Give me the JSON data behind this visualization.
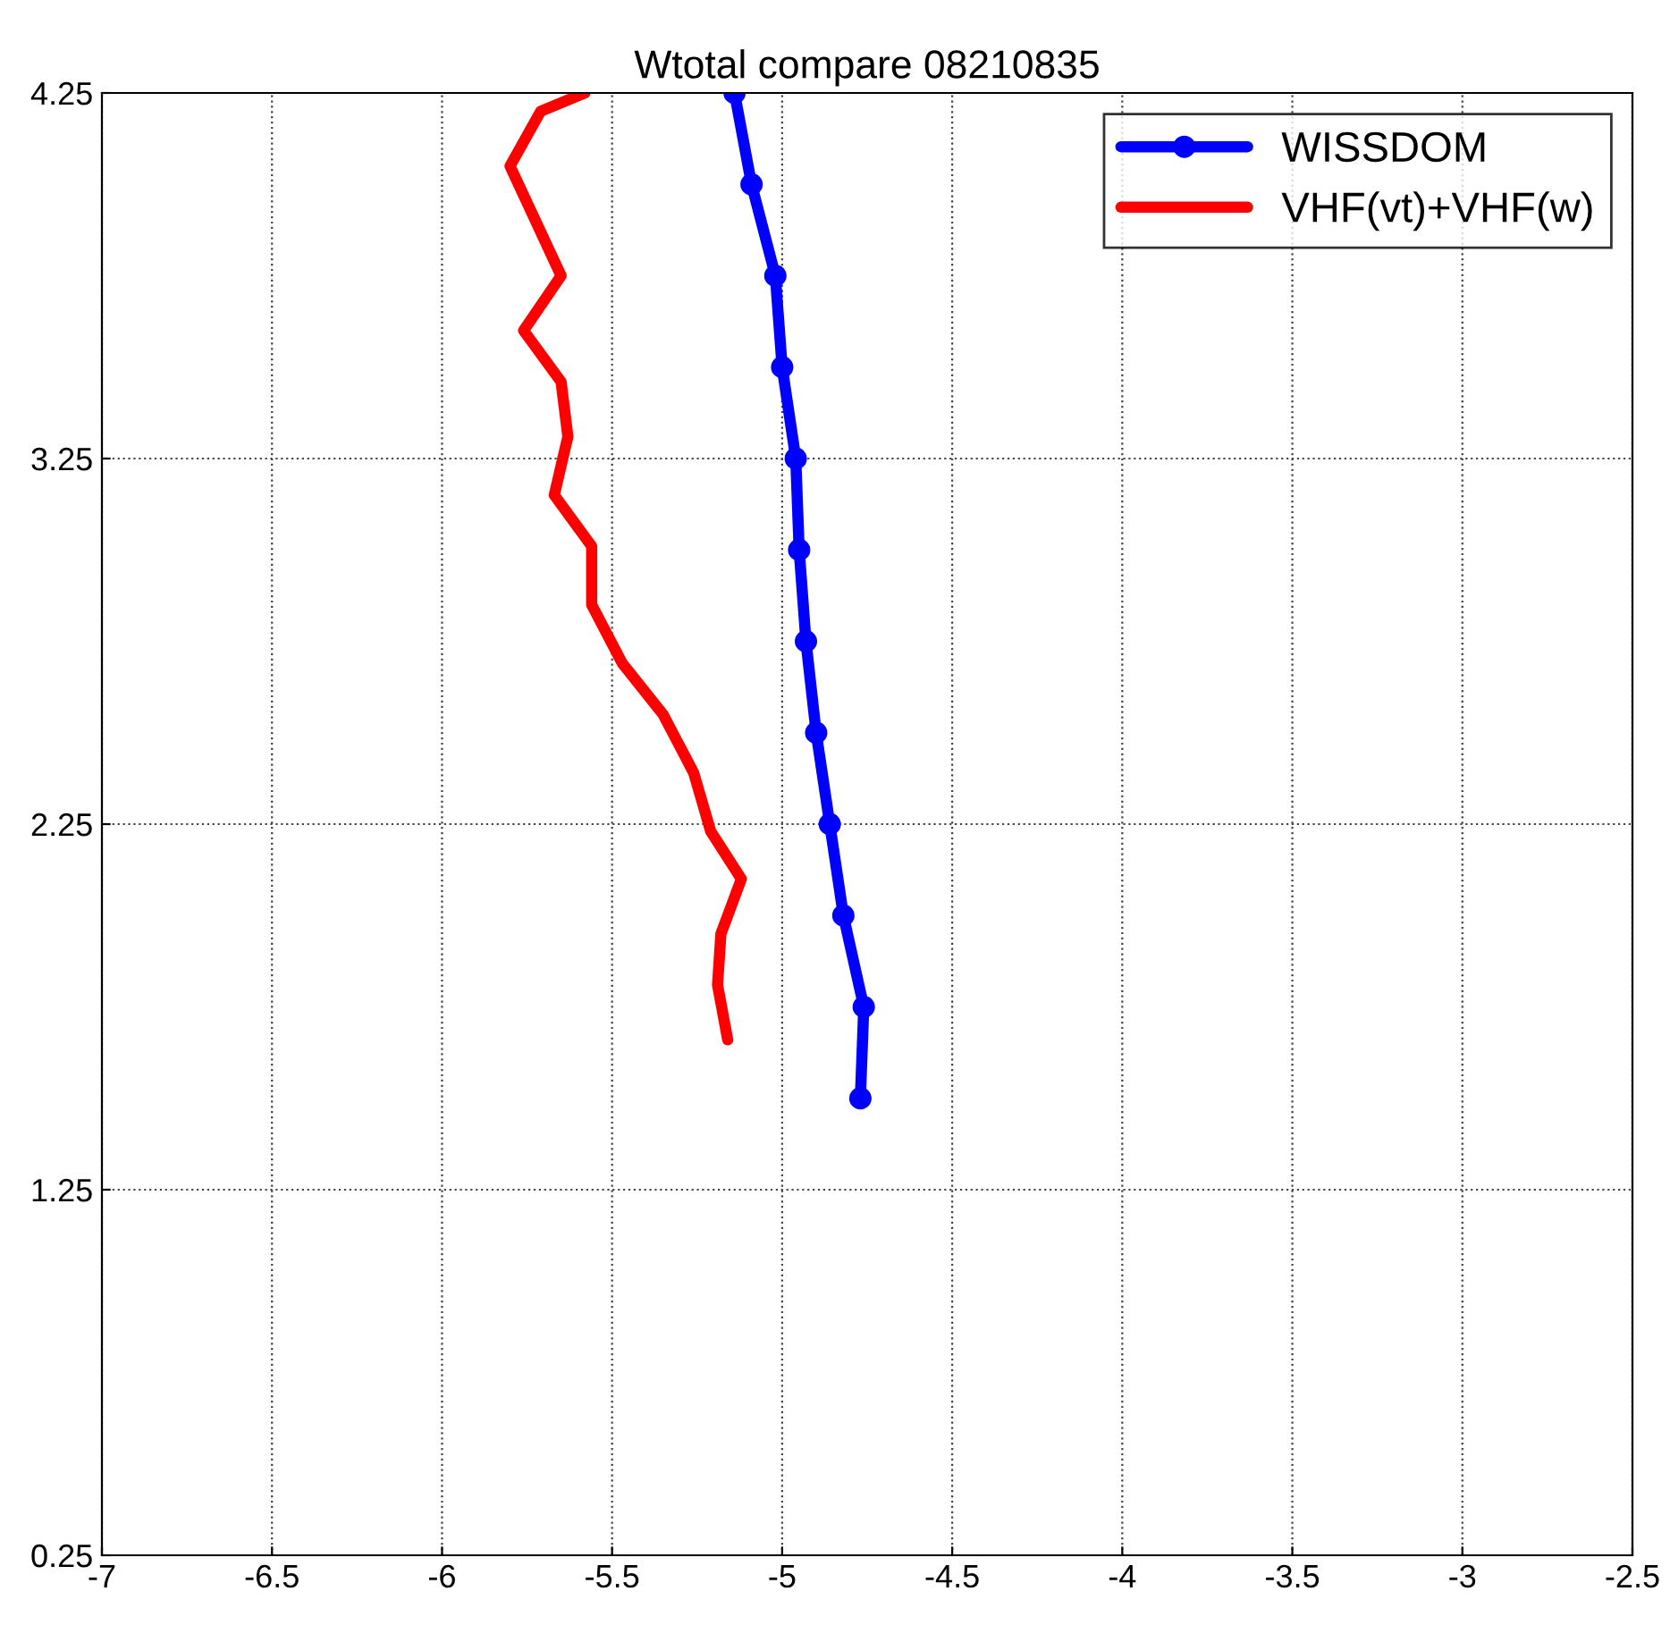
{
  "chart_data": {
    "type": "line",
    "title": "Wtotal compare 08210835",
    "series": [
      {
        "name": "WISSDOM",
        "color": "#0000ff",
        "marker": "circle",
        "x": [
          -5.14,
          -5.09,
          -5.02,
          -5.0,
          -4.96,
          -4.95,
          -4.93,
          -4.9,
          -4.86,
          -4.82,
          -4.76,
          -4.77
        ],
        "values": [
          4.25,
          4.0,
          3.75,
          3.5,
          3.25,
          3.0,
          2.75,
          2.5,
          2.25,
          2.0,
          1.75,
          1.5
        ]
      },
      {
        "name": "VHF(vt)+VHF(w)",
        "color": "#ff0000",
        "marker": "none",
        "x": [
          -5.58,
          -5.71,
          -5.8,
          -5.65,
          -5.76,
          -5.65,
          -5.63,
          -5.67,
          -5.56,
          -5.56,
          -5.47,
          -5.35,
          -5.26,
          -5.21,
          -5.12,
          -5.18,
          -5.19,
          -5.16
        ],
        "values": [
          4.25,
          4.2,
          4.05,
          3.75,
          3.6,
          3.46,
          3.31,
          3.15,
          3.01,
          2.85,
          2.69,
          2.55,
          2.39,
          2.23,
          2.1,
          1.95,
          1.81,
          1.66
        ]
      }
    ],
    "xlim": [
      -7,
      -2.5
    ],
    "xticks": [
      -7,
      -6.5,
      -6,
      -5.5,
      -5,
      -4.5,
      -4,
      -3.5,
      -3,
      -2.5
    ],
    "ylim": [
      0.25,
      4.25
    ],
    "yticks": [
      0.25,
      1.25,
      2.25,
      3.25,
      4.25
    ],
    "grid": true,
    "legend": "top right",
    "line_style": "solid"
  }
}
